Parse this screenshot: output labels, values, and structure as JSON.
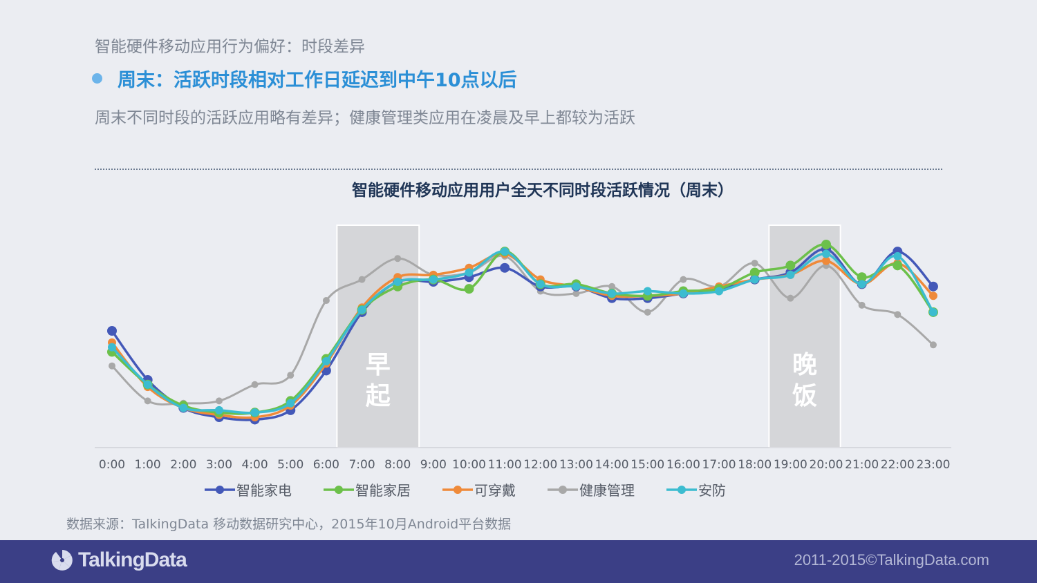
{
  "header": {
    "kicker": "智能硬件移动应用行为偏好：时段差异",
    "headline": "周末：活跃时段相对工作日延迟到中午10点以后",
    "subtitle": "周末不同时段的活跃应用略有差异；健康管理类应用在凌晨及早上都较为活跃"
  },
  "chart_data": {
    "type": "line",
    "title": "智能硬件移动应用用户全天不同时段活跃情况（周末）",
    "categories": [
      "0:00",
      "1:00",
      "2:00",
      "3:00",
      "4:00",
      "5:00",
      "6:00",
      "7:00",
      "8:00",
      "9:00",
      "10:00",
      "11:00",
      "12:00",
      "13:00",
      "14:00",
      "15:00",
      "16:00",
      "17:00",
      "18:00",
      "19:00",
      "20:00",
      "21:00",
      "22:00",
      "23:00"
    ],
    "ylim": [
      0,
      100
    ],
    "y_axis_visible": false,
    "grid": false,
    "legend_position": "bottom",
    "series": [
      {
        "name": "智能家电",
        "color": "#4358b8",
        "values": [
          50,
          29,
          17,
          13,
          12,
          16,
          33,
          58,
          71,
          71,
          73,
          77,
          69,
          69,
          64,
          64,
          66,
          68,
          72,
          75,
          85,
          70,
          84,
          69
        ]
      },
      {
        "name": "智能家居",
        "color": "#6cc04a",
        "values": [
          41,
          27,
          18,
          15,
          15,
          20,
          38,
          59,
          69,
          72,
          68,
          84,
          70,
          70,
          66,
          65,
          67,
          68,
          75,
          78,
          87,
          73,
          78,
          58
        ]
      },
      {
        "name": "可穿戴",
        "color": "#ef8a3a",
        "values": [
          45,
          26,
          17,
          14,
          13,
          18,
          36,
          60,
          73,
          74,
          77,
          83,
          72,
          69,
          65,
          65,
          66,
          69,
          72,
          74,
          80,
          70,
          79,
          65
        ]
      },
      {
        "name": "健康管理",
        "color": "#a8a8a8",
        "values": [
          35,
          20,
          19,
          20,
          27,
          31,
          63,
          72,
          81,
          74,
          75,
          82,
          67,
          66,
          69,
          58,
          72,
          69,
          79,
          64,
          78,
          61,
          57,
          44
        ]
      },
      {
        "name": "安防",
        "color": "#3cbcd0",
        "values": [
          43,
          27,
          17,
          16,
          15,
          19,
          37,
          59,
          71,
          72,
          75,
          84,
          70,
          69,
          66,
          67,
          66,
          67,
          72,
          74,
          83,
          70,
          82,
          58
        ]
      }
    ],
    "bands": [
      {
        "label": "早起",
        "from": 6.3,
        "to": 8.6
      },
      {
        "label": "晚饭",
        "from": 18.4,
        "to": 20.4
      }
    ]
  },
  "source": "数据来源：TalkingData 移动数据研究中心，2015年10月Android平台数据",
  "footer": {
    "logo": "TalkingData",
    "copyright": "2011-2015©TalkingData.com"
  }
}
